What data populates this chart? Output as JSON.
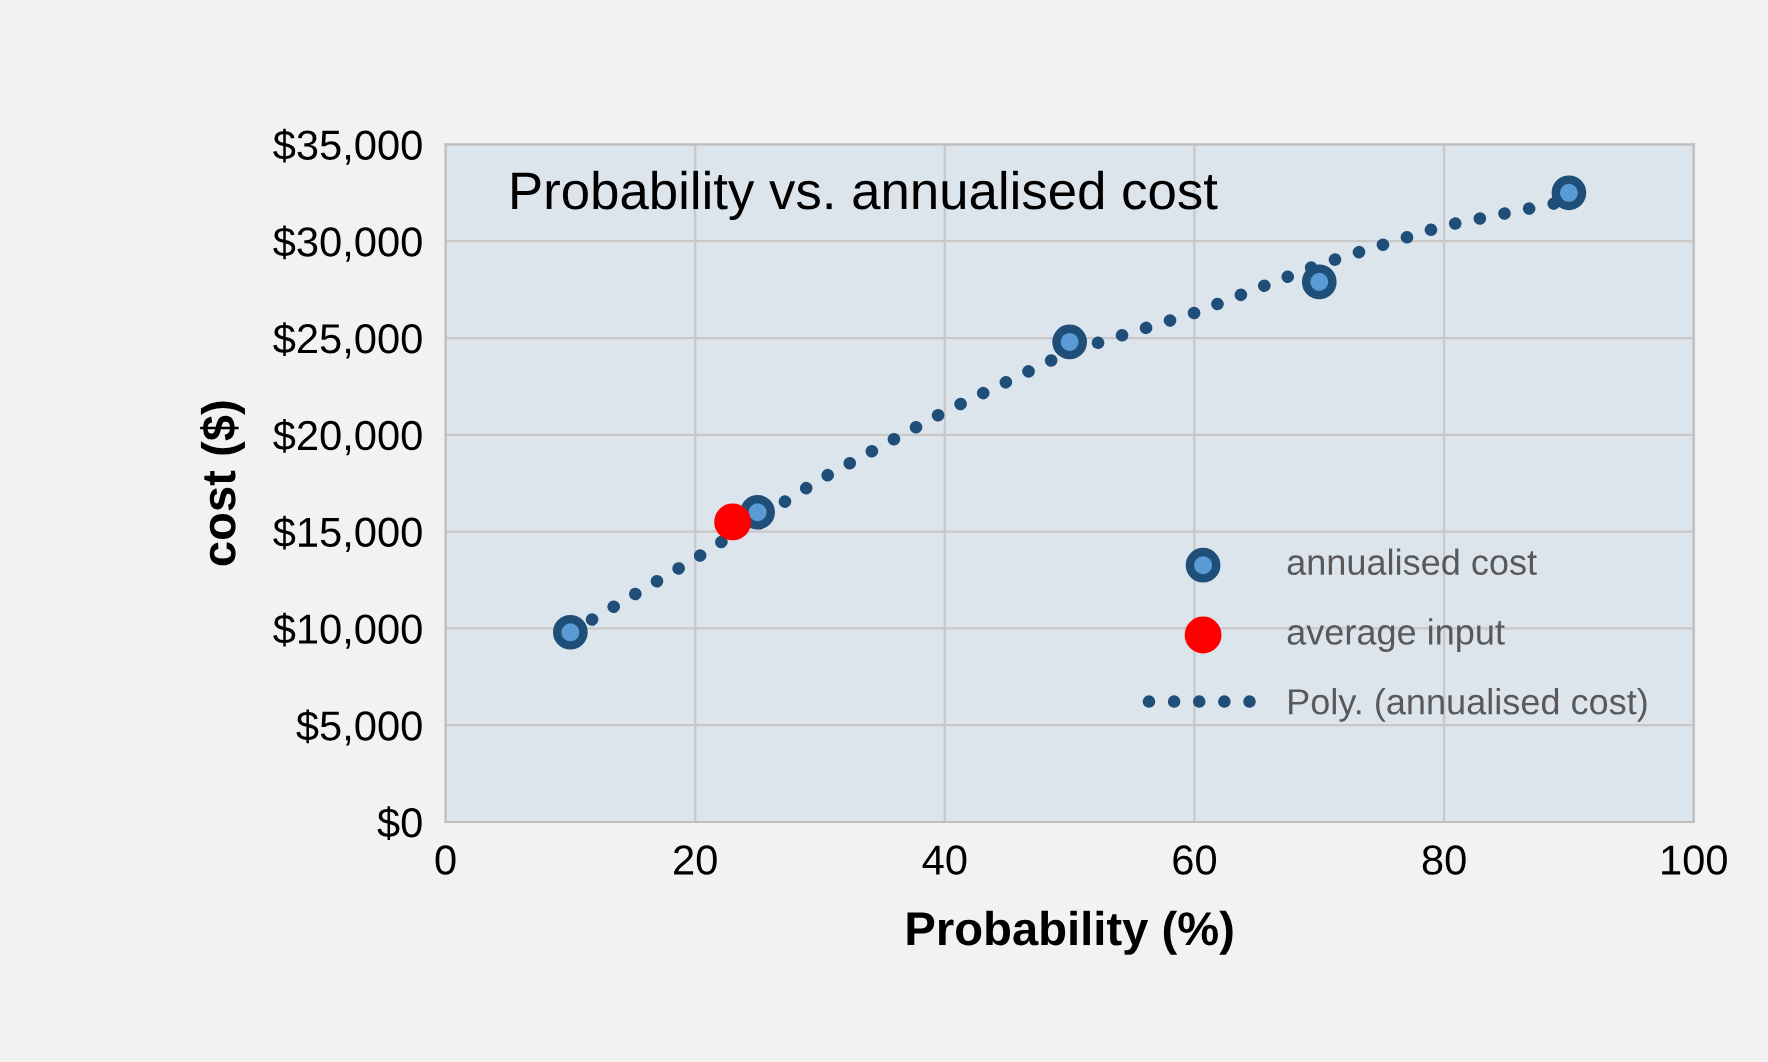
{
  "chart_data": {
    "type": "scatter",
    "title": "Probability vs. annualised cost",
    "xlabel": "Probability (%)",
    "ylabel": "cost ($)",
    "series": [
      {
        "name": "annualised cost",
        "color": "#1f4e79",
        "x": [
          10,
          25,
          50,
          70,
          90
        ],
        "values": [
          9800,
          16000,
          24800,
          27900,
          32500
        ]
      },
      {
        "name": "average input",
        "color": "#ff0000",
        "x": [
          23
        ],
        "values": [
          15500
        ]
      },
      {
        "name": "Poly. (annualised cost)",
        "type": "line",
        "line_style": "dotted",
        "marker": "none",
        "color": "#1f4e79",
        "x": [
          10,
          20,
          30,
          40,
          50,
          60,
          70,
          80,
          90
        ],
        "values": [
          9800,
          13600,
          17700,
          21200,
          24300,
          26300,
          28800,
          30800,
          32100
        ]
      }
    ],
    "marker": "circle",
    "xlim": [
      0,
      100
    ],
    "xticks": [
      0,
      20,
      40,
      60,
      80,
      100
    ],
    "ylim": [
      0,
      35000
    ],
    "yticks": [
      {
        "value": 0,
        "label": "$0"
      },
      {
        "value": 5000,
        "label": "$5,000"
      },
      {
        "value": 10000,
        "label": "$10,000"
      },
      {
        "value": 15000,
        "label": "$15,000"
      },
      {
        "value": 20000,
        "label": "$20,000"
      },
      {
        "value": 25000,
        "label": "$25,000"
      },
      {
        "value": 30000,
        "label": "$30,000"
      },
      {
        "value": 35000,
        "label": "$35,000"
      }
    ],
    "grid": true,
    "legend": "bottom right"
  }
}
